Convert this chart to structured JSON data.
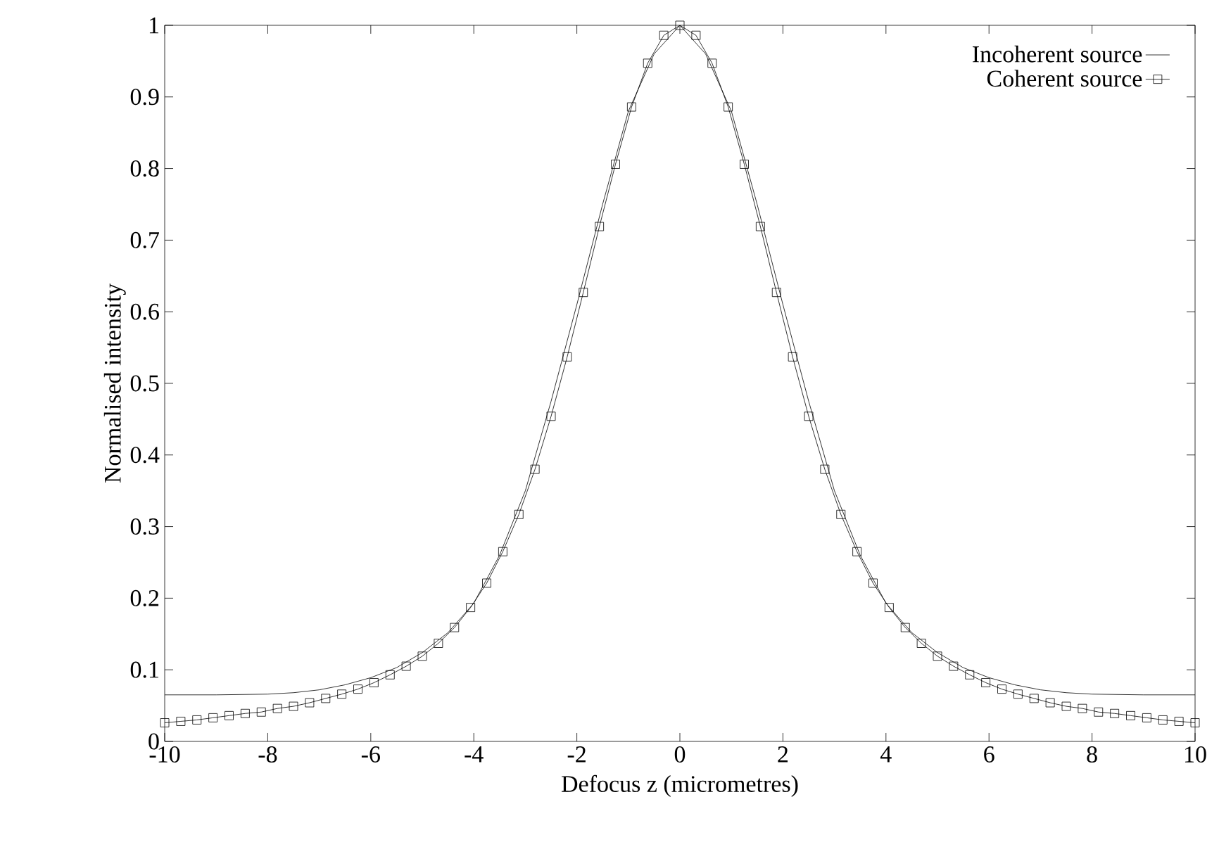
{
  "chart_data": {
    "type": "line",
    "xlabel": "Defocus z (micrometres)",
    "ylabel": "Normalised intensity",
    "xlim": [
      -10,
      10
    ],
    "ylim": [
      0,
      1
    ],
    "xticks": [
      -10,
      -8,
      -6,
      -4,
      -2,
      0,
      2,
      4,
      6,
      8,
      10
    ],
    "yticks": [
      0,
      0.1,
      0.2,
      0.3,
      0.4,
      0.5,
      0.6,
      0.7,
      0.8,
      0.9,
      1
    ],
    "legend": "top right",
    "grid": false,
    "series": [
      {
        "name": "Incoherent source",
        "color": "#000000",
        "marker": "none",
        "x": [
          -10,
          -9,
          -8,
          -7.5,
          -7,
          -6.5,
          -6,
          -5.5,
          -5,
          -4.5,
          -4,
          -3.5,
          -3,
          -2.5,
          -2,
          -1.5,
          -1,
          -0.5,
          0,
          0.5,
          1,
          1.5,
          2,
          2.5,
          3,
          3.5,
          4,
          4.5,
          5,
          5.5,
          6,
          6.5,
          7,
          7.5,
          8,
          9,
          10
        ],
        "values": [
          0.065,
          0.065,
          0.066,
          0.068,
          0.072,
          0.079,
          0.089,
          0.103,
          0.124,
          0.152,
          0.193,
          0.26,
          0.35,
          0.475,
          0.61,
          0.75,
          0.88,
          0.96,
          1,
          0.96,
          0.88,
          0.75,
          0.61,
          0.475,
          0.35,
          0.26,
          0.193,
          0.152,
          0.124,
          0.103,
          0.089,
          0.079,
          0.072,
          0.068,
          0.066,
          0.065,
          0.065
        ]
      },
      {
        "name": "Coherent source",
        "color": "#000000",
        "marker": "square",
        "x": [
          -10,
          -9.6875,
          -9.375,
          -9.0625,
          -8.75,
          -8.4375,
          -8.125,
          -7.8125,
          -7.5,
          -7.1875,
          -6.875,
          -6.5625,
          -6.25,
          -5.9375,
          -5.625,
          -5.3125,
          -5,
          -4.6875,
          -4.375,
          -4.0625,
          -3.75,
          -3.4375,
          -3.125,
          -2.8125,
          -2.5,
          -2.1875,
          -1.875,
          -1.5625,
          -1.25,
          -0.9375,
          -0.625,
          -0.3125,
          0,
          0.3125,
          0.625,
          0.9375,
          1.25,
          1.5625,
          1.875,
          2.1875,
          2.5,
          2.8125,
          3.125,
          3.4375,
          3.75,
          4.0625,
          4.375,
          4.6875,
          5,
          5.3125,
          5.625,
          5.9375,
          6.25,
          6.5625,
          6.875,
          7.1875,
          7.5,
          7.8125,
          8.125,
          8.4375,
          8.75,
          9.0625,
          9.375,
          9.6875,
          10
        ],
        "values": [
          0.026,
          0.028,
          0.03,
          0.033,
          0.036,
          0.039,
          0.041,
          0.046,
          0.049,
          0.054,
          0.06,
          0.066,
          0.073,
          0.082,
          0.093,
          0.105,
          0.119,
          0.137,
          0.159,
          0.187,
          0.221,
          0.265,
          0.317,
          0.38,
          0.454,
          0.537,
          0.627,
          0.719,
          0.806,
          0.886,
          0.947,
          0.986,
          1,
          0.986,
          0.947,
          0.886,
          0.806,
          0.719,
          0.627,
          0.537,
          0.454,
          0.38,
          0.317,
          0.265,
          0.221,
          0.187,
          0.159,
          0.137,
          0.119,
          0.105,
          0.093,
          0.082,
          0.073,
          0.066,
          0.06,
          0.054,
          0.049,
          0.046,
          0.041,
          0.039,
          0.036,
          0.033,
          0.03,
          0.028,
          0.026
        ]
      }
    ]
  }
}
